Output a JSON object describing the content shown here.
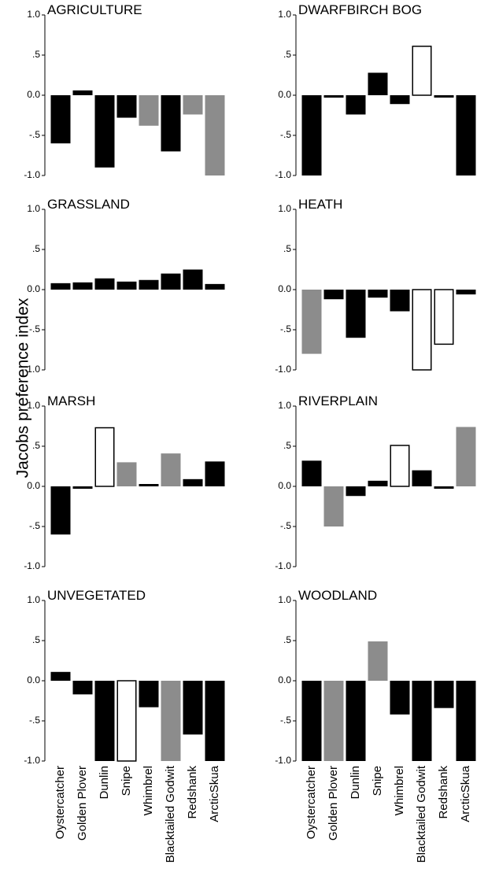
{
  "figure": {
    "ylabel": "Jacobs preference index"
  },
  "chart_data": {
    "type": "bar",
    "layout": "small-multiples grid, 4 rows x 2 columns",
    "ylabel": "Jacobs preference index",
    "categories": [
      "Oystercatcher",
      "Golden Plover",
      "Dunlin",
      "Snipe",
      "Whimbrel",
      "Blacktailed Godwit",
      "Redshank",
      "ArcticSkua"
    ],
    "ylim": [
      -1.0,
      1.0
    ],
    "yticks": [
      1.0,
      0.5,
      0.0,
      -0.5,
      -1.0
    ],
    "ytick_labels": [
      "1.0",
      ".5",
      "0.0",
      "-.5",
      "-1.0"
    ],
    "grid": false,
    "legend": "none",
    "colors": {
      "black": "#000000",
      "grey": "#8c8c8c",
      "open": "#ffffff",
      "outline": "#000000"
    },
    "panels": [
      {
        "title": "AGRICULTURE",
        "values": [
          -0.6,
          0.06,
          -0.9,
          -0.28,
          -0.38,
          -0.7,
          -0.24,
          -1.0
        ],
        "fills": [
          "black",
          "black",
          "black",
          "black",
          "grey",
          "black",
          "grey",
          "grey"
        ]
      },
      {
        "title": "DWARFBIRCH BOG",
        "values": [
          -1.0,
          -0.03,
          -0.24,
          0.28,
          -0.11,
          0.61,
          -0.01,
          -1.0
        ],
        "fills": [
          "black",
          "black",
          "black",
          "black",
          "black",
          "open",
          "black",
          "black"
        ]
      },
      {
        "title": "GRASSLAND",
        "values": [
          0.08,
          0.09,
          0.14,
          0.1,
          0.12,
          0.2,
          0.25,
          0.07
        ],
        "fills": [
          "black",
          "black",
          "black",
          "black",
          "black",
          "black",
          "black",
          "black"
        ]
      },
      {
        "title": "HEATH",
        "values": [
          -0.8,
          -0.12,
          -0.6,
          -0.1,
          -0.27,
          -1.0,
          -0.68,
          -0.06
        ],
        "fills": [
          "grey",
          "black",
          "black",
          "black",
          "black",
          "open",
          "open",
          "black"
        ]
      },
      {
        "title": "MARSH",
        "values": [
          -0.6,
          -0.03,
          0.73,
          0.3,
          0.02,
          0.41,
          0.09,
          0.31
        ],
        "fills": [
          "black",
          "black",
          "open",
          "grey",
          "black",
          "grey",
          "black",
          "black"
        ]
      },
      {
        "title": "RIVERPLAIN",
        "values": [
          0.32,
          -0.5,
          -0.12,
          0.07,
          0.51,
          0.2,
          -0.01,
          0.74
        ],
        "fills": [
          "black",
          "grey",
          "black",
          "black",
          "open",
          "black",
          "black",
          "grey"
        ]
      },
      {
        "title": "UNVEGETATED",
        "values": [
          0.11,
          -0.17,
          -1.0,
          -1.0,
          -0.33,
          -1.0,
          -0.67,
          -1.0
        ],
        "fills": [
          "black",
          "black",
          "black",
          "open",
          "black",
          "grey",
          "black",
          "black"
        ]
      },
      {
        "title": "WOODLAND",
        "values": [
          -1.0,
          -1.0,
          -1.0,
          0.49,
          -0.42,
          -1.0,
          -0.34,
          -1.0
        ],
        "fills": [
          "black",
          "grey",
          "black",
          "grey",
          "black",
          "black",
          "black",
          "black"
        ]
      }
    ]
  }
}
